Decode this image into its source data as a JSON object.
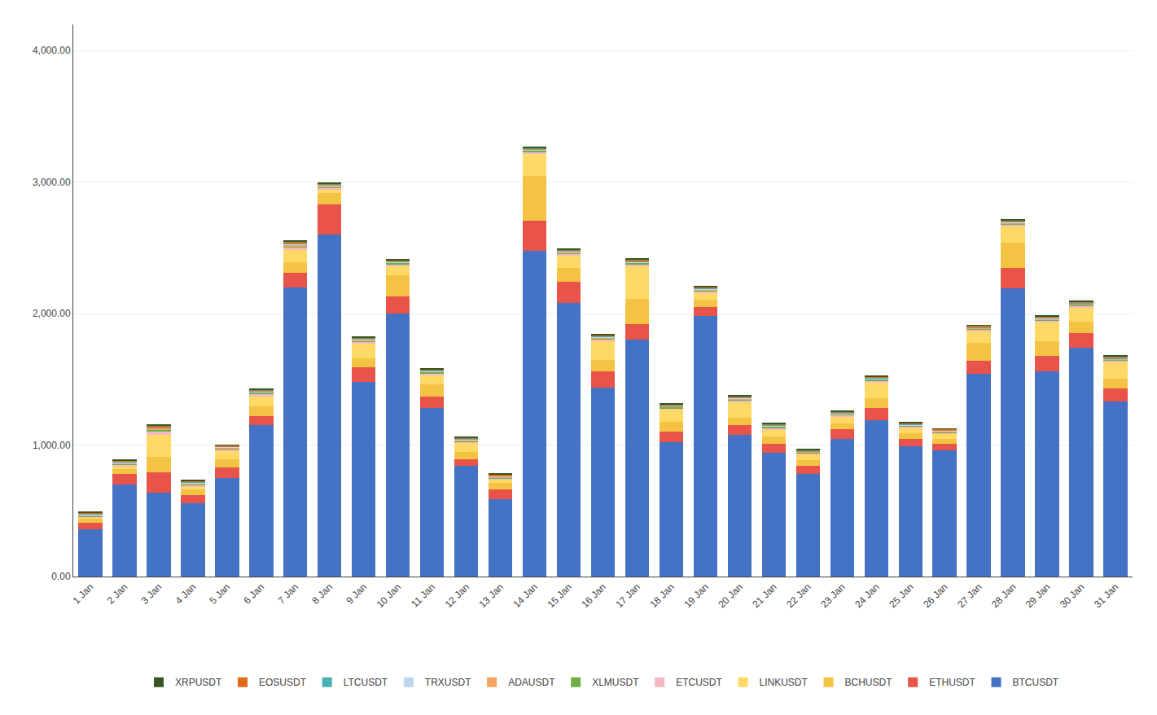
{
  "chart_data": {
    "type": "bar",
    "stacked": true,
    "categories": [
      "1 Jan",
      "2 Jan",
      "3 Jan",
      "4 Jan",
      "5 Jan",
      "6 Jan",
      "7 Jan",
      "8 Jan",
      "9 Jan",
      "10 Jan",
      "11 Jan",
      "12 Jan",
      "13 Jan",
      "14 Jan",
      "15 Jan",
      "16 Jan",
      "17 Jan",
      "18 Jan",
      "19 Jan",
      "20 Jan",
      "21 Jan",
      "22 Jan",
      "23 Jan",
      "24 Jan",
      "25 Jan",
      "26 Jan",
      "27 Jan",
      "28 Jan",
      "29 Jan",
      "30 Jan",
      "31 Jan"
    ],
    "series": [
      {
        "name": "BTCUSDT",
        "color": "#4472C4",
        "values": [
          360,
          700,
          640,
          560,
          750,
          1150,
          2200,
          2600,
          1480,
          2000,
          1280,
          840,
          590,
          2480,
          2080,
          1440,
          1800,
          1020,
          1980,
          1080,
          940,
          780,
          1050,
          1190,
          990,
          960,
          1540,
          2190,
          1560,
          1740,
          1330
        ]
      },
      {
        "name": "ETHUSDT",
        "color": "#E8534A",
        "values": [
          50,
          80,
          150,
          60,
          80,
          70,
          110,
          230,
          110,
          130,
          90,
          50,
          70,
          230,
          160,
          120,
          120,
          80,
          70,
          70,
          70,
          60,
          70,
          90,
          60,
          50,
          100,
          160,
          120,
          110,
          100
        ]
      },
      {
        "name": "BCHUSDT",
        "color": "#F4C343",
        "values": [
          30,
          40,
          120,
          40,
          60,
          75,
          80,
          90,
          70,
          160,
          90,
          55,
          55,
          340,
          110,
          90,
          190,
          75,
          55,
          55,
          55,
          45,
          45,
          75,
          38,
          38,
          140,
          190,
          110,
          90,
          75
        ]
      },
      {
        "name": "LINKUSDT",
        "color": "#FFD966",
        "values": [
          10,
          20,
          170,
          25,
          65,
          75,
          95,
          25,
          115,
          75,
          75,
          75,
          25,
          170,
          95,
          145,
          255,
          95,
          55,
          125,
          55,
          45,
          55,
          125,
          45,
          38,
          85,
          125,
          145,
          105,
          125
        ]
      },
      {
        "name": "ETCUSDT",
        "color": "#F4B8C1",
        "values": [
          8,
          12,
          25,
          12,
          12,
          22,
          18,
          12,
          12,
          12,
          12,
          8,
          8,
          12,
          12,
          12,
          12,
          12,
          12,
          12,
          12,
          8,
          8,
          12,
          8,
          8,
          12,
          12,
          12,
          12,
          12
        ]
      },
      {
        "name": "XLMUSDT",
        "color": "#70AD47",
        "values": [
          5,
          8,
          15,
          8,
          8,
          8,
          12,
          8,
          8,
          8,
          8,
          5,
          5,
          8,
          8,
          8,
          8,
          8,
          8,
          8,
          8,
          5,
          5,
          8,
          5,
          5,
          8,
          8,
          8,
          8,
          8
        ]
      },
      {
        "name": "ADAUSDT",
        "color": "#F4A460",
        "values": [
          5,
          5,
          8,
          5,
          5,
          5,
          8,
          5,
          5,
          5,
          5,
          5,
          5,
          5,
          5,
          5,
          5,
          5,
          5,
          5,
          5,
          5,
          5,
          5,
          5,
          5,
          5,
          5,
          5,
          5,
          5
        ]
      },
      {
        "name": "TRXUSDT",
        "color": "#BDD7EE",
        "values": [
          5,
          5,
          5,
          5,
          5,
          5,
          5,
          5,
          5,
          5,
          5,
          5,
          5,
          5,
          5,
          5,
          5,
          5,
          5,
          5,
          5,
          5,
          5,
          5,
          5,
          5,
          5,
          5,
          5,
          5,
          5
        ]
      },
      {
        "name": "LTCUSDT",
        "color": "#4BAFB3",
        "values": [
          5,
          5,
          5,
          5,
          5,
          5,
          8,
          5,
          5,
          5,
          5,
          5,
          5,
          5,
          5,
          5,
          8,
          5,
          5,
          5,
          5,
          5,
          5,
          5,
          5,
          5,
          5,
          8,
          8,
          8,
          8
        ]
      },
      {
        "name": "EOSUSDT",
        "color": "#E06C1A",
        "values": [
          8,
          8,
          8,
          8,
          8,
          8,
          12,
          8,
          8,
          8,
          8,
          8,
          8,
          8,
          8,
          8,
          8,
          8,
          8,
          8,
          8,
          8,
          8,
          8,
          8,
          8,
          8,
          8,
          8,
          8,
          8
        ]
      },
      {
        "name": "XRPUSDT",
        "color": "#375623",
        "values": [
          5,
          5,
          8,
          5,
          5,
          5,
          8,
          5,
          5,
          5,
          5,
          5,
          5,
          5,
          5,
          5,
          8,
          5,
          5,
          5,
          5,
          5,
          5,
          5,
          5,
          5,
          5,
          5,
          5,
          5,
          5
        ]
      }
    ],
    "ylim": [
      0,
      4200
    ],
    "yticks": [
      {
        "value": 0,
        "label": "0.00"
      },
      {
        "value": 1000,
        "label": "1,000.00"
      },
      {
        "value": 2000,
        "label": "2,000.00"
      },
      {
        "value": 3000,
        "label": "3,000.00"
      },
      {
        "value": 4000,
        "label": "4,000.00"
      }
    ],
    "grid": true,
    "legend": "bottom"
  }
}
